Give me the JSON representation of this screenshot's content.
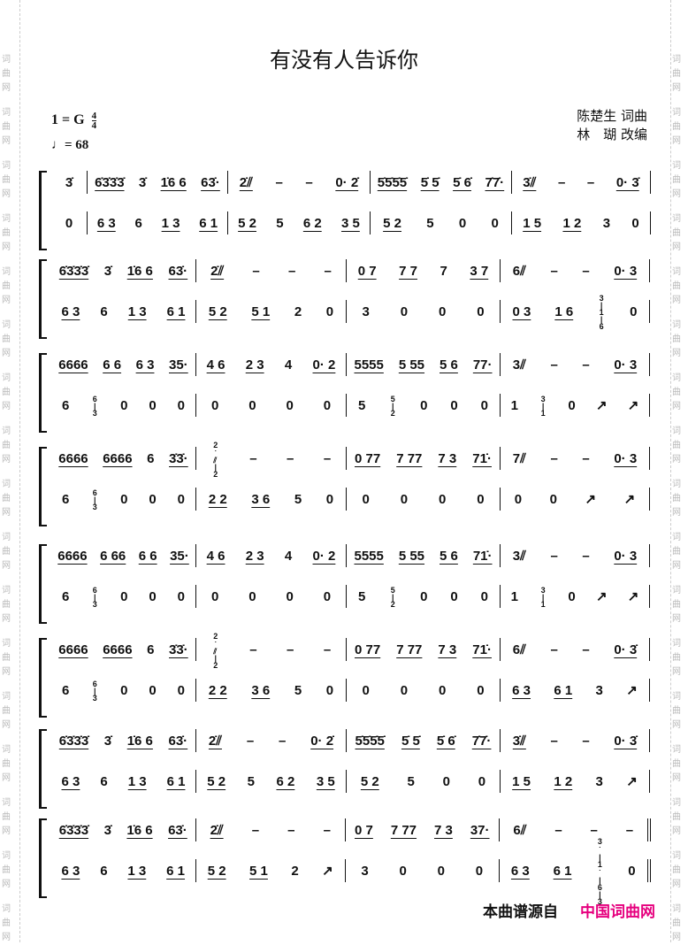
{
  "title": "有没有人告诉你",
  "key": {
    "label": "1 = G",
    "time_top": "4",
    "time_bottom": "4"
  },
  "tempo": {
    "note": "♩",
    "value": "= 68"
  },
  "credits": {
    "line1": "陈楚生 词曲",
    "line2": "林　瑚 改编"
  },
  "watermark": [
    "词",
    "曲",
    "网"
  ],
  "footer": {
    "source_label": "本曲谱源自",
    "site_name": "中国词曲网",
    "site_color": "#e6007e"
  },
  "systems": [
    {
      "pickup": {
        "top": [
          "3̇"
        ],
        "bottom": [
          "0"
        ]
      },
      "top": [
        [
          "6̇3̇3̇3̇",
          "3̇",
          "1̇6 6",
          "63̇·"
        ],
        [
          "2̇⫽",
          "–",
          "–",
          "0· 2̇"
        ],
        [
          "5̇5̇5̇5̇",
          "5̇ 5̇",
          "5̇ 6̇",
          "7̇7̇·"
        ],
        [
          "3̇⫽",
          "–",
          "–",
          "0· 3̇"
        ]
      ],
      "bottom": [
        [
          "6 3",
          "6",
          "1 3",
          "6 1"
        ],
        [
          "5 2",
          "5",
          "6 2",
          "3 5"
        ],
        [
          "5 2",
          "5",
          "0",
          "0"
        ],
        [
          "1 5",
          "1 2",
          "3",
          "0"
        ]
      ]
    },
    {
      "top": [
        [
          "6̇3̇3̇3̇",
          "3̇",
          "1̇6 6",
          "63̇·"
        ],
        [
          "2̇⫽",
          "–",
          "–",
          "–"
        ],
        [
          "0 7",
          "7 7",
          "7",
          "3 7"
        ],
        [
          "6⫽",
          "–",
          "–",
          "0· 3"
        ]
      ],
      "bottom": [
        [
          "6 3",
          "6",
          "1 3",
          "6 1"
        ],
        [
          "5 2",
          "5 1",
          "2",
          "0"
        ],
        [
          "3",
          "0",
          "0",
          "0"
        ],
        [
          "0 3",
          "1 6",
          "3|1|6",
          "0"
        ]
      ]
    },
    {
      "top": [
        [
          "6666",
          "6 6",
          "6 3",
          "35·"
        ],
        [
          "4 6",
          "2 3",
          "4",
          "0· 2"
        ],
        [
          "5555",
          "5 55",
          "5 6",
          "77·"
        ],
        [
          "3⫽",
          "–",
          "–",
          "0· 3"
        ]
      ],
      "bottom": [
        [
          "6",
          "6|3",
          "0",
          "0",
          "0"
        ],
        [
          "0",
          "0",
          "0",
          "0"
        ],
        [
          "5",
          "5|2",
          "0",
          "0",
          "0"
        ],
        [
          "1",
          "3|1",
          "0",
          "↗",
          "↗"
        ]
      ]
    },
    {
      "top": [
        [
          "6666",
          "6666",
          "6",
          "3̇3̇·"
        ],
        [
          "2̇⫽|2",
          "–",
          "–",
          "–"
        ],
        [
          "0 77",
          "7 77",
          "7 3",
          "71̇·"
        ],
        [
          "7⫽",
          "–",
          "–",
          "0· 3"
        ]
      ],
      "bottom": [
        [
          "6",
          "6|3",
          "0",
          "0",
          "0"
        ],
        [
          "2 2",
          "3 6",
          "5",
          "0"
        ],
        [
          "0",
          "0",
          "0",
          "0"
        ],
        [
          "0",
          "0",
          "↗",
          "↗"
        ]
      ]
    },
    {
      "top": [
        [
          "6666",
          "6 66",
          "6 6",
          "35·"
        ],
        [
          "4 6",
          "2 3",
          "4",
          "0· 2"
        ],
        [
          "5555",
          "5 55",
          "5 6",
          "71̇·"
        ],
        [
          "3⫽",
          "–",
          "–",
          "0· 3"
        ]
      ],
      "bottom": [
        [
          "6",
          "6|3",
          "0",
          "0",
          "0"
        ],
        [
          "0",
          "0",
          "0",
          "0"
        ],
        [
          "5",
          "5|2",
          "0",
          "0",
          "0"
        ],
        [
          "1",
          "3|1",
          "0",
          "↗",
          "↗"
        ]
      ]
    },
    {
      "top": [
        [
          "6666",
          "6666",
          "6",
          "3̇3̇·"
        ],
        [
          "2̇⫽|2",
          "–",
          "–",
          "–"
        ],
        [
          "0 77",
          "7 77",
          "7 3",
          "71̇·"
        ],
        [
          "6⫽",
          "–",
          "–",
          "0· 3̇"
        ]
      ],
      "bottom": [
        [
          "6",
          "6|3",
          "0",
          "0",
          "0"
        ],
        [
          "2 2",
          "3 6",
          "5",
          "0"
        ],
        [
          "0",
          "0",
          "0",
          "0"
        ],
        [
          "6 3",
          "6 1",
          "3",
          "↗"
        ]
      ]
    },
    {
      "top": [
        [
          "6̇3̇3̇3̇",
          "3̇",
          "1̇6 6",
          "63̇·"
        ],
        [
          "2̇⫽",
          "–",
          "–",
          "0· 2̇"
        ],
        [
          "5̇5̇5̇5̇",
          "5̇ 5̇",
          "5̇ 6̇",
          "7̇7̇·"
        ],
        [
          "3̇⫽",
          "–",
          "–",
          "0· 3̇"
        ]
      ],
      "bottom": [
        [
          "6 3",
          "6",
          "1 3",
          "6 1"
        ],
        [
          "5 2",
          "5",
          "6 2",
          "3 5"
        ],
        [
          "5 2",
          "5",
          "0",
          "0"
        ],
        [
          "1 5",
          "1 2",
          "3",
          "↗"
        ]
      ]
    },
    {
      "final": true,
      "top": [
        [
          "6̇3̇3̇3̇",
          "3̇",
          "1̇6 6",
          "63̇·"
        ],
        [
          "2̇⫽",
          "–",
          "–",
          "–"
        ],
        [
          "0 7",
          "7 77",
          "7 3",
          "37·"
        ],
        [
          "6⫽",
          "–",
          "–",
          "–"
        ]
      ],
      "bottom": [
        [
          "6 3",
          "6",
          "1 3",
          "6 1"
        ],
        [
          "5 2",
          "5 1",
          "2",
          "↗"
        ],
        [
          "3",
          "0",
          "0",
          "0"
        ],
        [
          "6 3",
          "6 1",
          "3̇|1̇|6|3",
          "0"
        ]
      ]
    }
  ]
}
